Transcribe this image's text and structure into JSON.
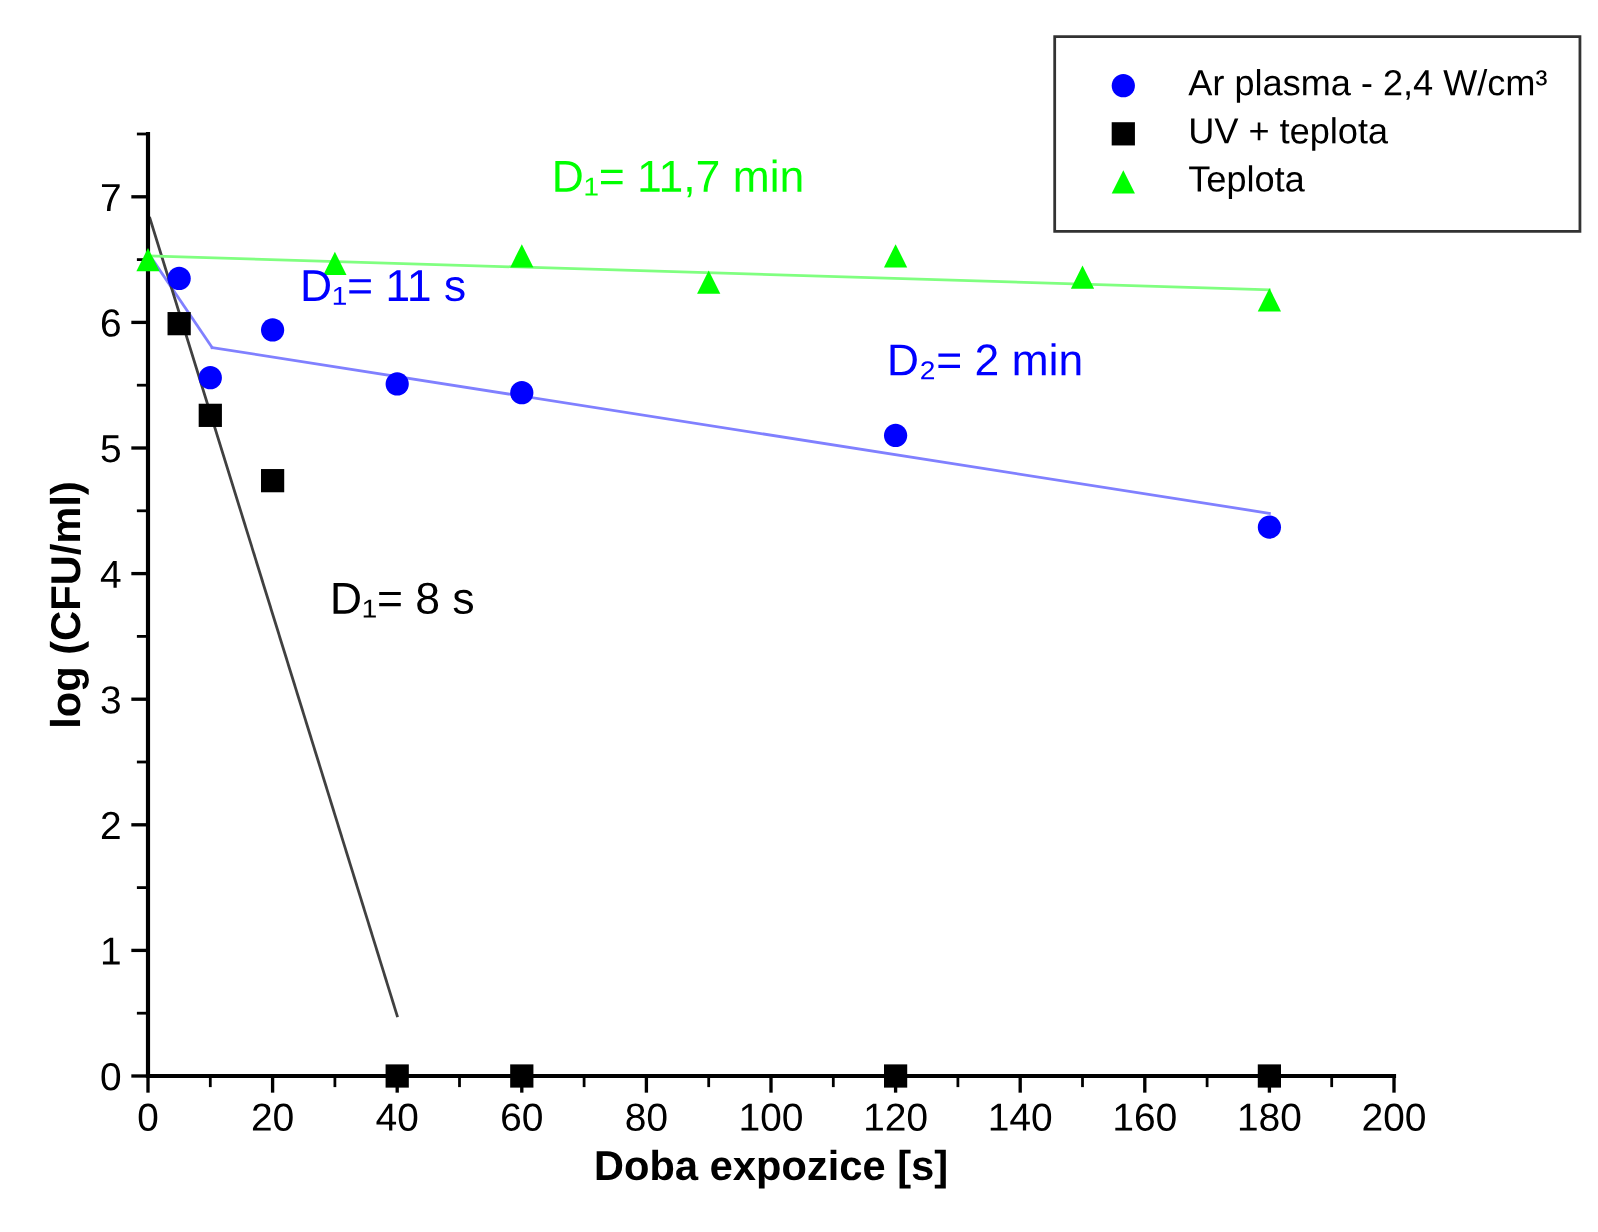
{
  "chart_data": {
    "type": "scatter",
    "xlabel": "Doba expozice [s]",
    "ylabel": "log (CFU/ml)",
    "xlim": [
      0,
      200
    ],
    "xticks": [
      0,
      20,
      40,
      60,
      80,
      100,
      120,
      140,
      160,
      180,
      200
    ],
    "ylim": [
      0,
      7.5
    ],
    "yticks": [
      0,
      1,
      2,
      3,
      4,
      5,
      6,
      7
    ],
    "grid": false,
    "legend": "top right",
    "series": [
      {
        "name": "Ar plasma - 2,4 W/cm³",
        "color": "#0000ff",
        "marker": "circle",
        "x": [
          5,
          10,
          20,
          40,
          60,
          120,
          180
        ],
        "values": [
          6.35,
          5.56,
          5.94,
          5.51,
          5.44,
          5.1,
          4.37
        ]
      },
      {
        "name": "UV + teplota",
        "color": "#000000",
        "marker": "square",
        "x": [
          5,
          10,
          20,
          40,
          60,
          120,
          180
        ],
        "values": [
          5.99,
          5.26,
          4.74,
          0,
          0,
          0,
          0
        ]
      },
      {
        "name": "Teplota",
        "color": "#00ff00",
        "marker": "triangle",
        "x": [
          0,
          30,
          60,
          90,
          120,
          150,
          180
        ],
        "values": [
          6.5,
          6.47,
          6.53,
          6.32,
          6.53,
          6.36,
          6.18
        ]
      },
      {
        "type": "line",
        "color": "#8080ff",
        "x": [
          0.6,
          10.3
        ],
        "values": [
          6.51,
          5.8
        ]
      },
      {
        "type": "line",
        "color": "#8080ff",
        "x": [
          10.3,
          180
        ],
        "values": [
          5.8,
          4.48
        ]
      },
      {
        "type": "line",
        "color": "#404040",
        "x": [
          0.3,
          40
        ],
        "values": [
          6.83,
          0.48
        ]
      },
      {
        "type": "line",
        "color": "#80ff80",
        "x": [
          0,
          180
        ],
        "values": [
          6.53,
          6.26
        ]
      }
    ],
    "annotations": [
      "D₁= 11,7 min",
      "D₁= 11 s",
      "D₂= 2 min",
      "D₁= 8 s"
    ]
  }
}
